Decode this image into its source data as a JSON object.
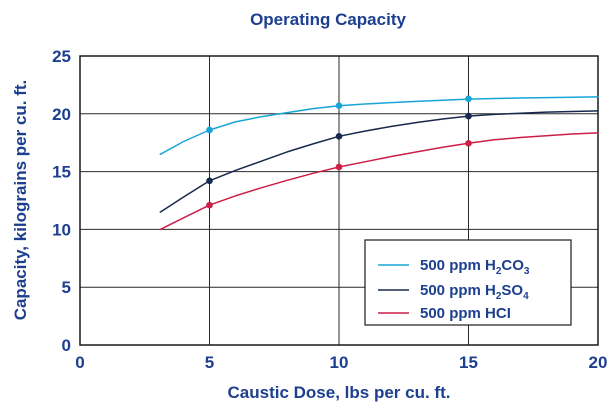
{
  "chart_data": {
    "type": "line",
    "title": "Operating Capacity",
    "xlabel": "Caustic Dose, lbs per cu. ft.",
    "ylabel": "Capacity, kilograins per cu. ft.",
    "xlim": [
      0,
      20
    ],
    "ylim": [
      0,
      25
    ],
    "x_ticks": [
      "0",
      "5",
      "10",
      "15",
      "20"
    ],
    "y_ticks": [
      "0",
      "5",
      "10",
      "15",
      "20",
      "25"
    ],
    "grid": true,
    "legend_position": "bottom-right",
    "series": [
      {
        "name_prefix": "500 ppm H",
        "name_sub1": "2",
        "name_mid": "CO",
        "name_sub2": "3",
        "color": "#17a5d6",
        "x": [
          3.1,
          4.0,
          5.0,
          6.0,
          7.0,
          8.0,
          9.0,
          10.0,
          11.0,
          12.0,
          13.0,
          14.0,
          15.0,
          16.0,
          17.0,
          18.0,
          19.0,
          20.0
        ],
        "y": [
          16.5,
          17.6,
          18.6,
          19.3,
          19.75,
          20.1,
          20.45,
          20.7,
          20.85,
          20.97,
          21.07,
          21.17,
          21.27,
          21.32,
          21.37,
          21.4,
          21.43,
          21.46
        ],
        "markers_x": [
          5,
          10,
          15
        ],
        "markers_y": [
          18.6,
          20.7,
          21.3
        ]
      },
      {
        "name_prefix": "500 ppm H",
        "name_sub1": "2",
        "name_mid": "SO",
        "name_sub2": "4",
        "color": "#17294d",
        "x": [
          3.1,
          4.0,
          5.0,
          6.0,
          7.0,
          8.0,
          9.0,
          10.0,
          11.0,
          12.0,
          13.0,
          14.0,
          15.0,
          16.0,
          17.0,
          18.0,
          19.0,
          20.0
        ],
        "y": [
          11.5,
          12.8,
          14.2,
          15.1,
          15.9,
          16.7,
          17.4,
          18.05,
          18.5,
          18.9,
          19.25,
          19.55,
          19.8,
          19.95,
          20.05,
          20.15,
          20.2,
          20.25
        ],
        "markers_x": [
          5,
          10,
          15
        ],
        "markers_y": [
          14.2,
          18.05,
          19.8
        ]
      },
      {
        "name": "500 ppm HCI",
        "color": "#cc1f45",
        "x": [
          3.1,
          4.0,
          5.0,
          6.0,
          7.0,
          8.0,
          9.0,
          10.0,
          11.0,
          12.0,
          13.0,
          14.0,
          15.0,
          16.0,
          17.0,
          18.0,
          19.0,
          20.0
        ],
        "y": [
          10.0,
          11.0,
          12.1,
          12.9,
          13.6,
          14.25,
          14.85,
          15.4,
          15.85,
          16.3,
          16.7,
          17.1,
          17.45,
          17.75,
          17.95,
          18.1,
          18.25,
          18.35
        ],
        "markers_x": [
          5,
          10,
          15
        ],
        "markers_y": [
          12.1,
          15.4,
          17.45
        ]
      }
    ]
  }
}
